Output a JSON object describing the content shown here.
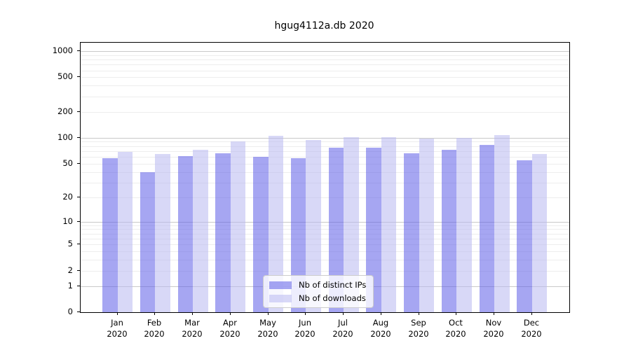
{
  "title": "hgug4112a.db 2020",
  "legend": {
    "items": [
      {
        "label": "Nb of distinct IPs",
        "color": "rgba(96,96,232,0.56)"
      },
      {
        "label": "Nb of downloads",
        "color": "rgba(185,185,241,0.56)"
      }
    ],
    "position": "lower center"
  },
  "axes": {
    "y_tick_labels": [
      "0",
      "1",
      "2",
      "5",
      "10",
      "20",
      "50",
      "100",
      "200",
      "500",
      "1000"
    ],
    "x_tick_year": "2020"
  },
  "chart_data": {
    "type": "bar",
    "title": "hgug4112a.db 2020",
    "categories": [
      "Jan",
      "Feb",
      "Mar",
      "Apr",
      "May",
      "Jun",
      "Jul",
      "Aug",
      "Sep",
      "Oct",
      "Nov",
      "Dec"
    ],
    "x_sublabel": "2020",
    "series": [
      {
        "name": "Nb of distinct IPs",
        "color": "rgba(96,96,232,0.56)",
        "composite_color": "#a6a6f2",
        "values": [
          58,
          40,
          61,
          66,
          60,
          58,
          76,
          77,
          66,
          73,
          83,
          55
        ]
      },
      {
        "name": "Nb of downloads",
        "color": "rgba(185,185,241,0.56)",
        "composite_color": "#d8d8f7",
        "values": [
          69,
          65,
          72,
          90,
          105,
          95,
          101,
          102,
          98,
          99,
          108,
          65
        ]
      }
    ],
    "xlabel": "",
    "ylabel": "",
    "y_ticks": [
      0,
      1,
      2,
      5,
      10,
      20,
      50,
      100,
      200,
      500,
      1000
    ],
    "y_scale": "log1p",
    "ylim": [
      0,
      1000
    ],
    "grid": true,
    "grid_major_at": [
      1,
      10,
      100,
      1000
    ],
    "legend_position": "lower center"
  }
}
